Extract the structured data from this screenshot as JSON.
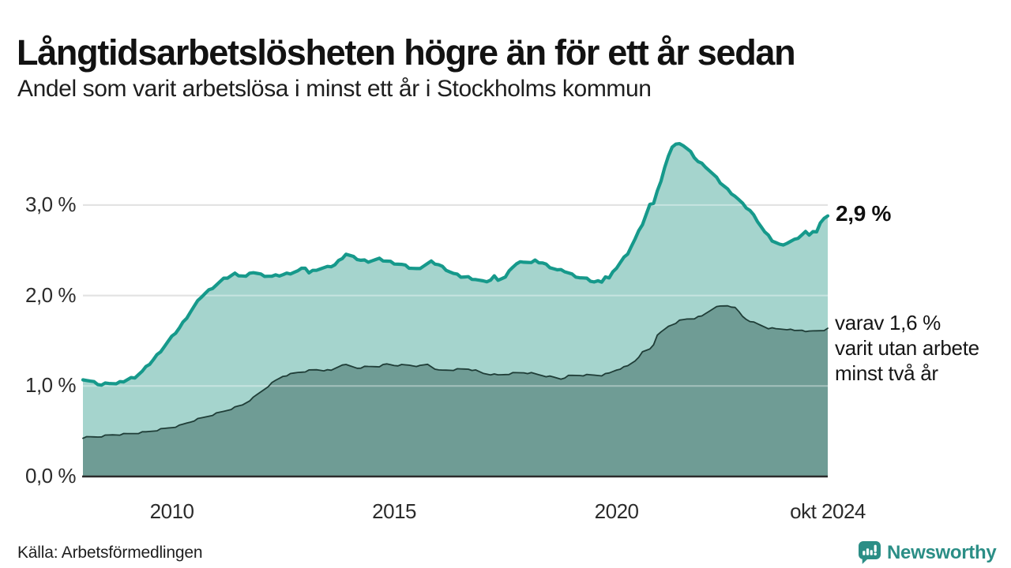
{
  "header": {
    "title": "Långtidsarbetslösheten högre än för ett år sedan",
    "subtitle": "Andel som varit arbetslösa i minst ett år i Stockholms kommun"
  },
  "footer": {
    "source": "Källa: Arbetsförmedlingen"
  },
  "brand": {
    "name": "Newsworthy",
    "color": "#2b8e86"
  },
  "chart_data": {
    "type": "area",
    "title": "Långtidsarbetslösheten högre än för ett år sedan",
    "subtitle": "Andel som varit arbetslösa i minst ett år i Stockholms kommun",
    "unit": "%",
    "x_start": "2008-01",
    "x_end": "2024-10",
    "frequency": "monthly",
    "ylim": [
      0,
      3.9
    ],
    "grid": true,
    "legend": "none",
    "colors": {
      "gridline": "#d0d0d0",
      "gridline_overlay": "rgba(255,255,255,0.38)",
      "axis": "#2b2b2b",
      "tick_text": "#2b2b2b"
    },
    "yticks": [
      {
        "label": "0,0 %",
        "value": 0
      },
      {
        "label": "1,0 %",
        "value": 1
      },
      {
        "label": "2,0 %",
        "value": 2
      },
      {
        "label": "3,0 %",
        "value": 3
      }
    ],
    "xticks": [
      {
        "label": "2010",
        "month_index": 24
      },
      {
        "label": "2015",
        "month_index": 84
      },
      {
        "label": "2020",
        "month_index": 144
      },
      {
        "label": "okt 2024",
        "month_index": 201
      }
    ],
    "series": [
      {
        "name": "Andel som varit arbetslösa minst ett år",
        "line_color": "#16998b",
        "fill_color": "#a5d4cd",
        "final_value": 2.9,
        "end_label": "2,9 %",
        "anchors": [
          [
            0,
            1.08
          ],
          [
            2,
            1.05
          ],
          [
            5,
            1.01
          ],
          [
            7,
            1.04
          ],
          [
            9,
            1.02
          ],
          [
            12,
            1.07
          ],
          [
            14,
            1.1
          ],
          [
            16,
            1.16
          ],
          [
            19,
            1.29
          ],
          [
            22,
            1.44
          ],
          [
            26,
            1.64
          ],
          [
            29,
            1.82
          ],
          [
            32,
            1.99
          ],
          [
            35,
            2.09
          ],
          [
            38,
            2.18
          ],
          [
            41,
            2.24
          ],
          [
            44,
            2.21
          ],
          [
            46,
            2.26
          ],
          [
            48,
            2.23
          ],
          [
            51,
            2.21
          ],
          [
            54,
            2.23
          ],
          [
            58,
            2.27
          ],
          [
            60,
            2.31
          ],
          [
            61,
            2.25
          ],
          [
            63,
            2.29
          ],
          [
            66,
            2.31
          ],
          [
            68,
            2.34
          ],
          [
            71,
            2.46
          ],
          [
            73,
            2.42
          ],
          [
            75,
            2.39
          ],
          [
            77,
            2.38
          ],
          [
            80,
            2.4
          ],
          [
            82,
            2.38
          ],
          [
            84,
            2.36
          ],
          [
            86,
            2.34
          ],
          [
            88,
            2.31
          ],
          [
            90,
            2.29
          ],
          [
            92,
            2.33
          ],
          [
            94,
            2.37
          ],
          [
            96,
            2.34
          ],
          [
            98,
            2.29
          ],
          [
            100,
            2.24
          ],
          [
            102,
            2.21
          ],
          [
            104,
            2.2
          ],
          [
            106,
            2.18
          ],
          [
            108,
            2.15
          ],
          [
            110,
            2.17
          ],
          [
            111,
            2.21
          ],
          [
            112,
            2.18
          ],
          [
            114,
            2.2
          ],
          [
            116,
            2.32
          ],
          [
            117,
            2.35
          ],
          [
            119,
            2.38
          ],
          [
            121,
            2.36
          ],
          [
            122,
            2.38
          ],
          [
            124,
            2.36
          ],
          [
            126,
            2.32
          ],
          [
            128,
            2.28
          ],
          [
            130,
            2.27
          ],
          [
            132,
            2.23
          ],
          [
            134,
            2.2
          ],
          [
            136,
            2.18
          ],
          [
            138,
            2.15
          ],
          [
            140,
            2.16
          ],
          [
            141,
            2.21
          ],
          [
            142,
            2.19
          ],
          [
            143,
            2.25
          ],
          [
            144,
            2.31
          ],
          [
            147,
            2.47
          ],
          [
            149,
            2.62
          ],
          [
            151,
            2.79
          ],
          [
            153,
            3.0
          ],
          [
            154,
            3.03
          ],
          [
            155,
            3.16
          ],
          [
            156,
            3.26
          ],
          [
            158,
            3.55
          ],
          [
            159,
            3.64
          ],
          [
            161,
            3.69
          ],
          [
            162,
            3.66
          ],
          [
            164,
            3.58
          ],
          [
            166,
            3.48
          ],
          [
            168,
            3.43
          ],
          [
            170,
            3.34
          ],
          [
            172,
            3.25
          ],
          [
            174,
            3.17
          ],
          [
            176,
            3.1
          ],
          [
            178,
            3.01
          ],
          [
            180,
            2.94
          ],
          [
            182,
            2.83
          ],
          [
            184,
            2.7
          ],
          [
            186,
            2.61
          ],
          [
            188,
            2.56
          ],
          [
            190,
            2.58
          ],
          [
            192,
            2.61
          ],
          [
            194,
            2.67
          ],
          [
            195,
            2.7
          ],
          [
            196,
            2.68
          ],
          [
            197,
            2.71
          ],
          [
            198,
            2.7
          ],
          [
            199,
            2.79
          ],
          [
            200,
            2.86
          ],
          [
            201,
            2.88
          ]
        ]
      },
      {
        "name": "varav utan arbete minst två år",
        "line_color": "#1f3d37",
        "fill_color": "#6f9c95",
        "final_value": 1.6,
        "side_label_lines": [
          "varav 1,6 %",
          "varit utan arbete",
          "minst två år"
        ],
        "anchors": [
          [
            0,
            0.43
          ],
          [
            4,
            0.44
          ],
          [
            8,
            0.46
          ],
          [
            12,
            0.47
          ],
          [
            17,
            0.49
          ],
          [
            21,
            0.52
          ],
          [
            26,
            0.56
          ],
          [
            30,
            0.62
          ],
          [
            34,
            0.67
          ],
          [
            38,
            0.72
          ],
          [
            43,
            0.79
          ],
          [
            46,
            0.87
          ],
          [
            50,
            1.0
          ],
          [
            52,
            1.06
          ],
          [
            54,
            1.11
          ],
          [
            58,
            1.15
          ],
          [
            61,
            1.17
          ],
          [
            63,
            1.18
          ],
          [
            67,
            1.17
          ],
          [
            70,
            1.24
          ],
          [
            72,
            1.22
          ],
          [
            74,
            1.2
          ],
          [
            76,
            1.21
          ],
          [
            80,
            1.22
          ],
          [
            82,
            1.24
          ],
          [
            84,
            1.23
          ],
          [
            88,
            1.23
          ],
          [
            91,
            1.22
          ],
          [
            93,
            1.24
          ],
          [
            96,
            1.17
          ],
          [
            100,
            1.18
          ],
          [
            104,
            1.19
          ],
          [
            106,
            1.17
          ],
          [
            108,
            1.14
          ],
          [
            112,
            1.12
          ],
          [
            116,
            1.14
          ],
          [
            119,
            1.15
          ],
          [
            121,
            1.14
          ],
          [
            125,
            1.11
          ],
          [
            129,
            1.08
          ],
          [
            131,
            1.11
          ],
          [
            134,
            1.12
          ],
          [
            140,
            1.12
          ],
          [
            142,
            1.14
          ],
          [
            144,
            1.18
          ],
          [
            147,
            1.22
          ],
          [
            149,
            1.28
          ],
          [
            151,
            1.37
          ],
          [
            153,
            1.41
          ],
          [
            154,
            1.46
          ],
          [
            155,
            1.57
          ],
          [
            156,
            1.59
          ],
          [
            158,
            1.66
          ],
          [
            160,
            1.7
          ],
          [
            161,
            1.72
          ],
          [
            163,
            1.74
          ],
          [
            165,
            1.75
          ],
          [
            167,
            1.77
          ],
          [
            168,
            1.8
          ],
          [
            170,
            1.86
          ],
          [
            172,
            1.88
          ],
          [
            174,
            1.89
          ],
          [
            175,
            1.88
          ],
          [
            176,
            1.86
          ],
          [
            177,
            1.82
          ],
          [
            178,
            1.77
          ],
          [
            179,
            1.74
          ],
          [
            181,
            1.7
          ],
          [
            183,
            1.67
          ],
          [
            185,
            1.64
          ],
          [
            187,
            1.63
          ],
          [
            190,
            1.63
          ],
          [
            192,
            1.61
          ],
          [
            194,
            1.62
          ],
          [
            196,
            1.6
          ],
          [
            198,
            1.61
          ],
          [
            200,
            1.62
          ],
          [
            201,
            1.63
          ]
        ]
      }
    ]
  }
}
